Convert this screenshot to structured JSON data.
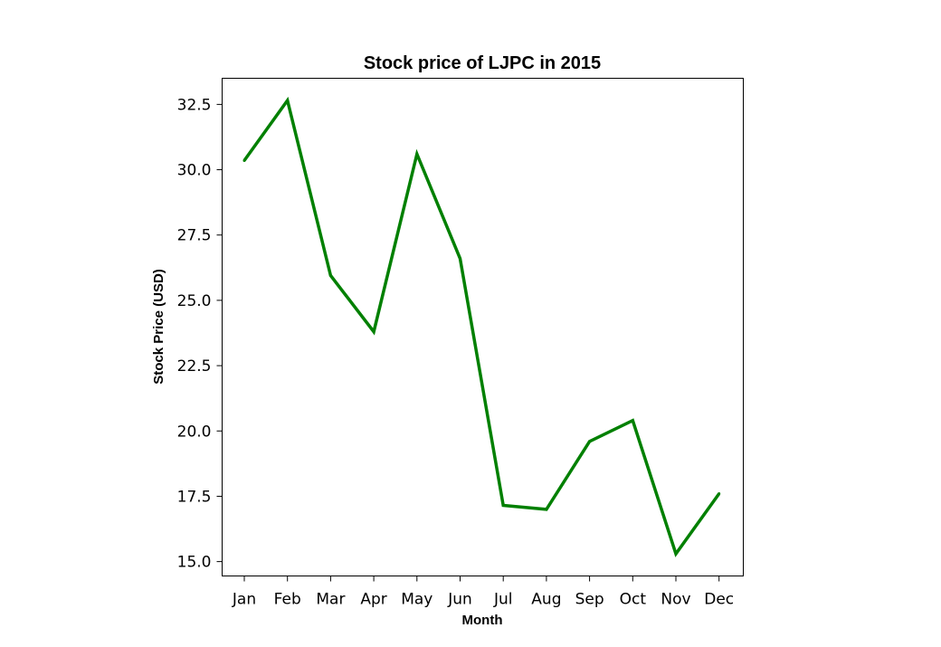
{
  "chart_data": {
    "type": "line",
    "title": "Stock price of LJPC in 2015",
    "xlabel": "Month",
    "ylabel": "Stock Price (USD)",
    "categories": [
      "Jan",
      "Feb",
      "Mar",
      "Apr",
      "May",
      "Jun",
      "Jul",
      "Aug",
      "Sep",
      "Oct",
      "Nov",
      "Dec"
    ],
    "series": [
      {
        "values": [
          30.35,
          32.65,
          25.95,
          23.8,
          30.6,
          26.6,
          17.15,
          17.0,
          19.6,
          20.4,
          15.3,
          17.6
        ]
      }
    ],
    "ylim": [
      14.45,
      33.5
    ],
    "yticks": [
      "15.0",
      "17.5",
      "20.0",
      "22.5",
      "25.0",
      "27.5",
      "30.0",
      "32.5"
    ],
    "line_color": "#008000",
    "grid": false,
    "legend": "none"
  }
}
